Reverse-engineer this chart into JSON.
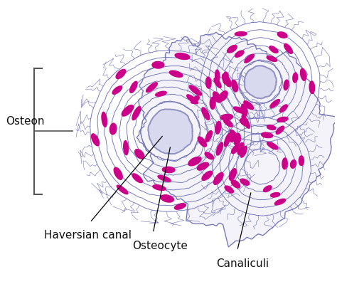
{
  "background_color": "#ffffff",
  "line_color": "#7070b8",
  "osteocyte_color": "#cc0088",
  "canal_fill": "#d8d8ee",
  "canal_border": "#9090c0",
  "label_color": "#111111",
  "labels": {
    "osteon": "Osteon",
    "haversian": "Haversian canal",
    "osteocyte": "Osteocyte",
    "canaliculi": "Canaliculi"
  },
  "figsize": [
    4.74,
    4.14
  ],
  "dpi": 100
}
